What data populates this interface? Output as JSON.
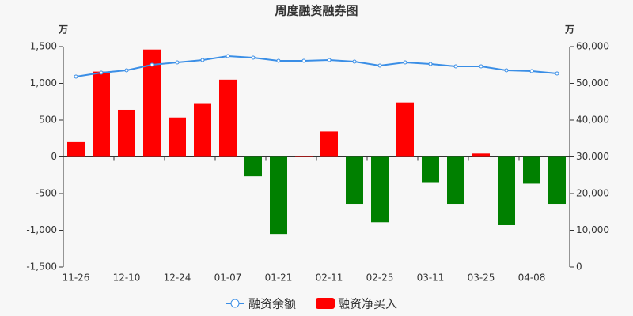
{
  "chart_data": {
    "type": "bar-line",
    "title": "周度融资融券图",
    "y_unit": "万",
    "y2_unit": "万",
    "categories": [
      "11-26",
      null,
      "12-10",
      null,
      "12-24",
      null,
      "01-07",
      null,
      "01-21",
      null,
      "02-11",
      null,
      "02-25",
      null,
      "03-11",
      null,
      "03-25",
      null,
      "04-08",
      null
    ],
    "series": [
      {
        "name": "融资余额",
        "type": "line",
        "axis": "y2",
        "color": "#3a8ee6",
        "values": [
          51830,
          52900,
          53550,
          55050,
          55700,
          56340,
          57420,
          56990,
          56130,
          56130,
          56340,
          55910,
          54840,
          55700,
          55270,
          54620,
          54620,
          53550,
          53330,
          52690
        ]
      },
      {
        "name": "融资净买入",
        "type": "bar",
        "axis": "y",
        "color": "#ff0000",
        "negative_color": "#008000",
        "values": [
          200,
          1160,
          640,
          1460,
          535,
          720,
          1050,
          -265,
          -1050,
          10,
          345,
          -640,
          -890,
          740,
          -355,
          -640,
          45,
          -930,
          -365,
          -640
        ]
      }
    ],
    "ylim": [
      -1500,
      1500
    ],
    "yticks": [
      {
        "value": -1500,
        "label": "-1,500"
      },
      {
        "value": -1000,
        "label": "-1,000"
      },
      -500,
      0,
      500,
      {
        "value": 1000,
        "label": "1,000"
      },
      {
        "value": 1500,
        "label": "1,500"
      }
    ],
    "y2lim": [
      0,
      60000
    ],
    "y2ticks": [
      0,
      {
        "value": 10000,
        "label": "10,000"
      },
      {
        "value": 20000,
        "label": "20,000"
      },
      {
        "value": 30000,
        "label": "30,000"
      },
      {
        "value": 40000,
        "label": "40,000"
      },
      {
        "value": 50000,
        "label": "50,000"
      },
      {
        "value": 60000,
        "label": "60,000"
      }
    ],
    "grid": false,
    "legend": "bottom"
  }
}
